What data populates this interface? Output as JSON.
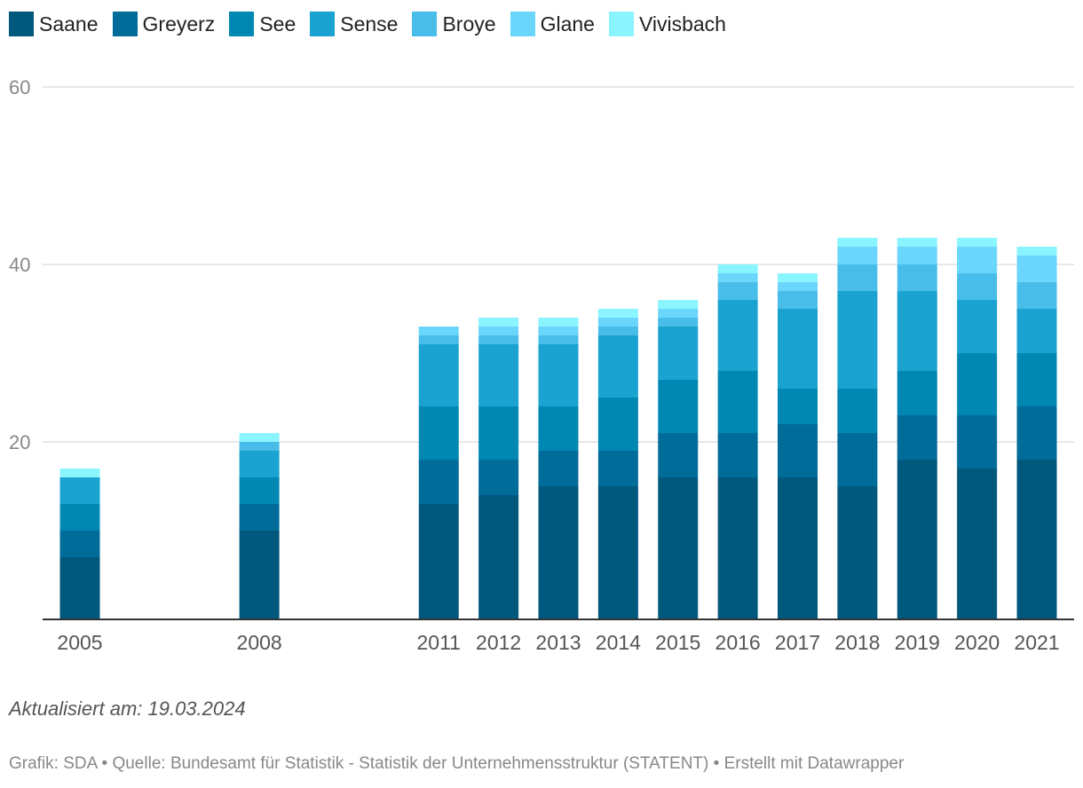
{
  "chart_data": {
    "type": "bar",
    "stacked": true,
    "title": "",
    "xlabel": "",
    "ylabel": "",
    "ylim": [
      0,
      60
    ],
    "yticks": [
      20,
      40,
      60
    ],
    "grid": true,
    "legend_position": "top-left",
    "categories": [
      "2005",
      "2008",
      "2011",
      "2012",
      "2013",
      "2014",
      "2015",
      "2016",
      "2017",
      "2018",
      "2019",
      "2020",
      "2021"
    ],
    "series": [
      {
        "name": "Saane",
        "color": "#00587d",
        "values": [
          7,
          10,
          13,
          14,
          15,
          15,
          16,
          16,
          16,
          15,
          18,
          17,
          18
        ]
      },
      {
        "name": "Greyerz",
        "color": "#006c9a",
        "values": [
          3,
          3,
          5,
          4,
          4,
          4,
          5,
          5,
          6,
          6,
          5,
          6,
          6
        ]
      },
      {
        "name": "See",
        "color": "#0088b3",
        "values": [
          3,
          3,
          6,
          6,
          5,
          6,
          6,
          7,
          4,
          5,
          5,
          7,
          6
        ]
      },
      {
        "name": "Sense",
        "color": "#1aa3d1",
        "values": [
          3,
          3,
          7,
          7,
          7,
          7,
          6,
          8,
          9,
          11,
          9,
          6,
          5
        ]
      },
      {
        "name": "Broye",
        "color": "#48bde9",
        "values": [
          0,
          1,
          1,
          1,
          1,
          1,
          1,
          2,
          2,
          3,
          3,
          3,
          3
        ]
      },
      {
        "name": "Glane",
        "color": "#6bd6fc",
        "values": [
          0,
          0,
          1,
          1,
          1,
          1,
          1,
          1,
          1,
          2,
          2,
          3,
          3
        ]
      },
      {
        "name": "Vivisbach",
        "color": "#8af4ff",
        "values": [
          1,
          1,
          0,
          1,
          1,
          1,
          1,
          1,
          1,
          1,
          1,
          1,
          1
        ]
      }
    ]
  },
  "note": "Aktualisiert am: 19.03.2024",
  "footer": "Grafik: SDA • Quelle: Bundesamt für Statistik - Statistik der Unternehmensstruktur (STATENT) • Erstellt mit Datawrapper"
}
